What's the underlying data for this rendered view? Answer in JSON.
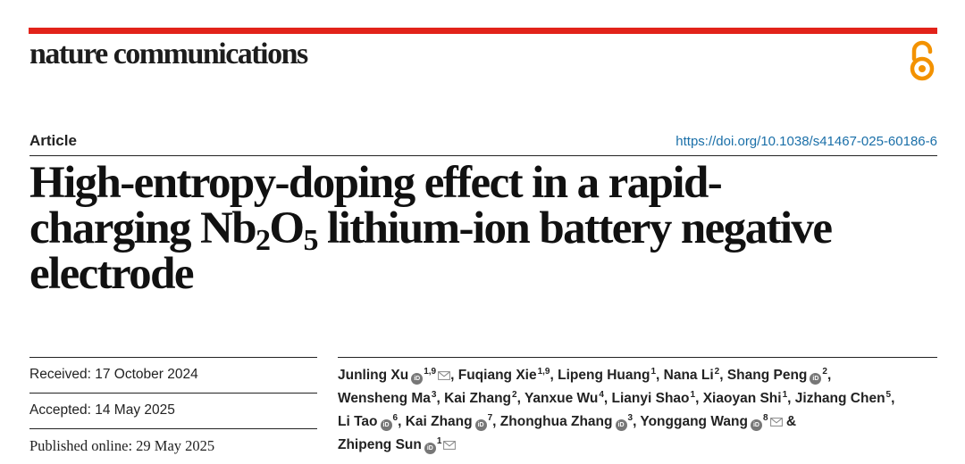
{
  "journal": "nature communications",
  "article_type": "Article",
  "doi": "https://doi.org/10.1038/s41467-025-60186-6",
  "title": {
    "part1": "High-entropy-doping effect in a rapid-",
    "part2": "charging Nb",
    "sub1": "2",
    "part3": "O",
    "sub2": "5",
    "part4": " lithium-ion battery negative",
    "part5": "electrode"
  },
  "dates": {
    "received": "Received: 17 October 2024",
    "accepted": "Accepted: 14 May 2025",
    "published": "Published online: 29 May 2025"
  },
  "orcid_label": "iD",
  "authors": [
    {
      "name": "Junling Xu",
      "aff": "1,9",
      "orcid": true,
      "mail": true
    },
    {
      "name": "Fuqiang Xie",
      "aff": "1,9",
      "orcid": false,
      "mail": false
    },
    {
      "name": "Lipeng Huang",
      "aff": "1",
      "orcid": false,
      "mail": false
    },
    {
      "name": "Nana Li",
      "aff": "2",
      "orcid": false,
      "mail": false
    },
    {
      "name": "Shang Peng",
      "aff": "2",
      "orcid": true,
      "mail": false
    },
    {
      "name": "Wensheng Ma",
      "aff": "3",
      "orcid": false,
      "mail": false
    },
    {
      "name": "Kai Zhang",
      "aff": "2",
      "orcid": false,
      "mail": false
    },
    {
      "name": "Yanxue Wu",
      "aff": "4",
      "orcid": false,
      "mail": false
    },
    {
      "name": "Lianyi Shao",
      "aff": "1",
      "orcid": false,
      "mail": false
    },
    {
      "name": "Xiaoyan Shi",
      "aff": "1",
      "orcid": false,
      "mail": false
    },
    {
      "name": "Jizhang Chen",
      "aff": "5",
      "orcid": false,
      "mail": false
    },
    {
      "name": "Li Tao",
      "aff": "6",
      "orcid": true,
      "mail": false
    },
    {
      "name": "Kai Zhang",
      "aff": "7",
      "orcid": true,
      "mail": false
    },
    {
      "name": "Zhonghua Zhang",
      "aff": "3",
      "orcid": true,
      "mail": false
    },
    {
      "name": "Yonggang Wang",
      "aff": "8",
      "orcid": true,
      "mail": true
    },
    {
      "name": "Zhipeng Sun",
      "aff": "1",
      "orcid": true,
      "mail": true
    }
  ],
  "colors": {
    "accent_red": "#e2231a",
    "oa_orange": "#f39200",
    "link_blue": "#1a6fa8"
  }
}
